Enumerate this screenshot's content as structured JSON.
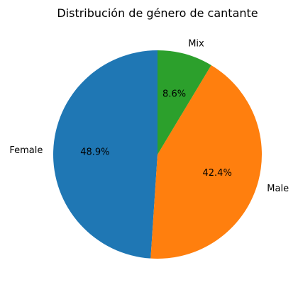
{
  "chart_data": {
    "type": "pie",
    "title": "Distribución de género de cantante",
    "slices": [
      {
        "label": "Female",
        "value": 48.9,
        "pct_label": "48.9%",
        "color": "#1f77b4"
      },
      {
        "label": "Male",
        "value": 42.4,
        "pct_label": "42.4%",
        "color": "#ff7f0e"
      },
      {
        "label": "Mix",
        "value": 8.6,
        "pct_label": "8.6%",
        "color": "#2ca02c"
      }
    ],
    "start_angle_deg": 90,
    "direction": "counterclockwise"
  }
}
